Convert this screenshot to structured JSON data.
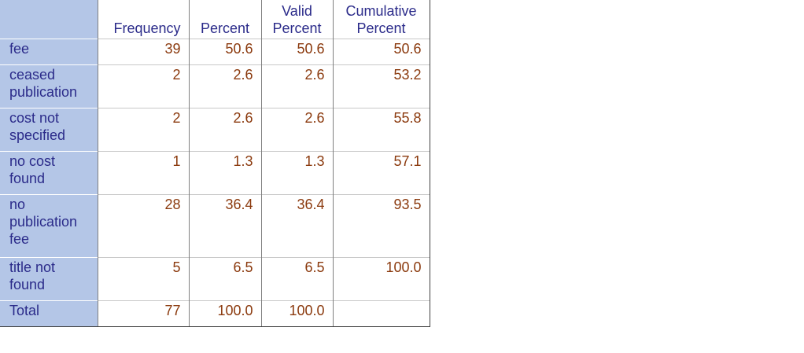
{
  "table": {
    "headers": {
      "frequency": "Frequency",
      "percent": "Percent",
      "valid_percent_line1": "Valid",
      "valid_percent_line2": "Percent",
      "cumulative_percent_line1": "Cumulative",
      "cumulative_percent_line2": "Percent"
    },
    "rows": [
      {
        "label": "fee",
        "frequency": "39",
        "percent": "50.6",
        "valid_percent": "50.6",
        "cumulative_percent": "50.6"
      },
      {
        "label": "ceased publication",
        "frequency": "2",
        "percent": "2.6",
        "valid_percent": "2.6",
        "cumulative_percent": "53.2"
      },
      {
        "label": "cost not specified",
        "frequency": "2",
        "percent": "2.6",
        "valid_percent": "2.6",
        "cumulative_percent": "55.8"
      },
      {
        "label": "no cost found",
        "frequency": "1",
        "percent": "1.3",
        "valid_percent": "1.3",
        "cumulative_percent": "57.1"
      },
      {
        "label": "no publication fee",
        "frequency": "28",
        "percent": "36.4",
        "valid_percent": "36.4",
        "cumulative_percent": "93.5"
      },
      {
        "label": "title not found",
        "frequency": "5",
        "percent": "6.5",
        "valid_percent": "6.5",
        "cumulative_percent": "100.0"
      },
      {
        "label": "Total",
        "frequency": "77",
        "percent": "100.0",
        "valid_percent": "100.0",
        "cumulative_percent": ""
      }
    ]
  },
  "colors": {
    "stub_background": "#b4c6e7",
    "header_text": "#2b2b8a",
    "value_text": "#8b3a0e"
  }
}
